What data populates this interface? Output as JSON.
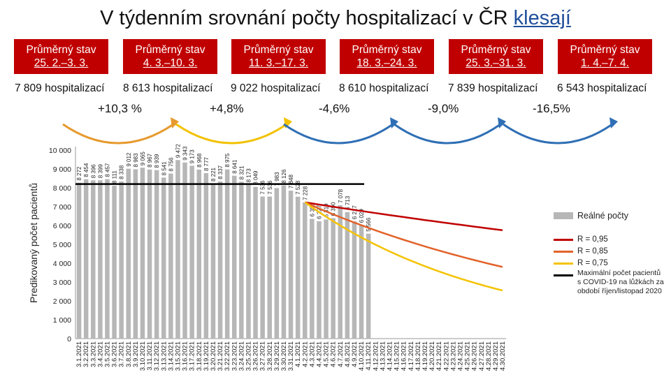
{
  "header": {
    "title_main": "V týdenním srovnání počty hospitalizací v ČR",
    "title_highlight": "klesají"
  },
  "periods": [
    {
      "label": "Průměrný stav",
      "range": "25. 2.–3. 3.",
      "hosp": "7 809 hospitalizací"
    },
    {
      "label": "Průměrný stav",
      "range": "4. 3.–10. 3.",
      "hosp": "8 613 hospitalizací"
    },
    {
      "label": "Průměrný stav",
      "range": "11. 3.–17. 3.",
      "hosp": "9 022 hospitalizací"
    },
    {
      "label": "Průměrný stav",
      "range": "18. 3.–24. 3.",
      "hosp": "8 610 hospitalizací"
    },
    {
      "label": "Průměrný stav",
      "range": "25. 3.–31. 3.",
      "hosp": "7 839 hospitalizací"
    },
    {
      "label": "Průměrný stav",
      "range": "1. 4.–7. 4.",
      "hosp": "6 543 hospitalizací"
    }
  ],
  "changes": [
    {
      "text": "+10,3 %",
      "color": "#e69a2e"
    },
    {
      "text": "+4,8%",
      "color": "#f2c200"
    },
    {
      "text": "-4,6%",
      "color": "#2f6fb5"
    },
    {
      "text": "-9,0%",
      "color": "#2f6fb5"
    },
    {
      "text": "-16,5%",
      "color": "#2f6fb5"
    }
  ],
  "legend": {
    "bars": "Reálné počty",
    "r095": "R = 0,95",
    "r085": "R = 0,85",
    "r075": "R = 0,75",
    "max_line": "Maximální počet pacientů s COVID-19 na lůžkách za období říjen/listopad 2020"
  },
  "chart_data": {
    "type": "bar",
    "ylabel": "Predikovaný počet pacientů",
    "ylim": [
      0,
      10000
    ],
    "yticks": [
      "0",
      "1 000",
      "2 000",
      "3 000",
      "4 000",
      "5 000",
      "6 000",
      "7 000",
      "8 000",
      "9 000",
      "10 000"
    ],
    "categories": [
      "3.1.2021",
      "3.2.2021",
      "3.3.2021",
      "3.4.2021",
      "3.5.2021",
      "3.6.2021",
      "3.7.2021",
      "3.8.2021",
      "3.9.2021",
      "3.10.2021",
      "3.11.2021",
      "3.12.2021",
      "3.13.2021",
      "3.14.2021",
      "3.15.2021",
      "3.16.2021",
      "3.17.2021",
      "3.18.2021",
      "3.19.2021",
      "3.20.2021",
      "3.21.2021",
      "3.22.2021",
      "3.23.2021",
      "3.24.2021",
      "3.25.2021",
      "3.26.2021",
      "3.27.2021",
      "3.28.2021",
      "3.29.2021",
      "3.30.2021",
      "3.31.2021",
      "4.1.2021",
      "4.2.2021",
      "4.3.2021",
      "4.4.2021",
      "4.5.2021",
      "4.6.2021",
      "4.7.2021",
      "4.8.2021",
      "4.9.2021",
      "4.10.2021",
      "4.11.2021",
      "4.12.2021",
      "4.13.2021",
      "4.14.2021",
      "4.15.2021",
      "4.16.2021",
      "4.17.2021",
      "4.18.2021",
      "4.19.2021",
      "4.20.2021",
      "4.21.2021",
      "4.22.2021",
      "4.23.2021",
      "4.24.2021",
      "4.25.2021",
      "4.26.2021",
      "4.27.2021",
      "4.28.2021",
      "4.29.2021",
      "4.30.2021"
    ],
    "bar_values": [
      8272,
      8454,
      8396,
      8399,
      8457,
      8111,
      8338,
      9012,
      8983,
      9065,
      8967,
      8939,
      8541,
      8756,
      9472,
      9343,
      9173,
      8968,
      8777,
      8221,
      8337,
      8975,
      8641,
      8321,
      8173,
      8049,
      7536,
      7536,
      7983,
      8126,
      7848,
      7528,
      7228,
      6355,
      6227,
      6319,
      6390,
      7078,
      6713,
      6217,
      6029,
      5566
    ],
    "bar_labels": [
      "8 272",
      "8 454",
      "8 396",
      "8 399",
      "8 457",
      "8 111",
      "8 338",
      "9 012",
      "8 983",
      "9 065",
      "8 967",
      "8 939",
      "8 541",
      "8 756",
      "9 472",
      "9 343",
      "9 173",
      "8 968",
      "8 777",
      "8 221",
      "8 337",
      "8 975",
      "8 641",
      "8 321",
      "8 173",
      "8 049",
      "7 536",
      "7 536",
      "7 983",
      "8 126",
      "7 848",
      "7 528",
      "7 228",
      "6 355",
      "6 227",
      "6 319",
      "6 390",
      "7 078",
      "6 713",
      "6 217",
      "6 029",
      "5 566"
    ],
    "max_line_value": 8200,
    "series": [
      {
        "name": "R = 0,95",
        "color": "#c00000",
        "start_index": 32,
        "start": 7228,
        "end": 5750
      },
      {
        "name": "R = 0,85",
        "color": "#e2622a",
        "start_index": 32,
        "start": 7228,
        "end": 3800
      },
      {
        "name": "R = 0,75",
        "color": "#f4c300",
        "start_index": 32,
        "start": 7228,
        "end": 2550
      }
    ],
    "bar_color": "#b7b7b7",
    "max_line_color": "#000000"
  }
}
